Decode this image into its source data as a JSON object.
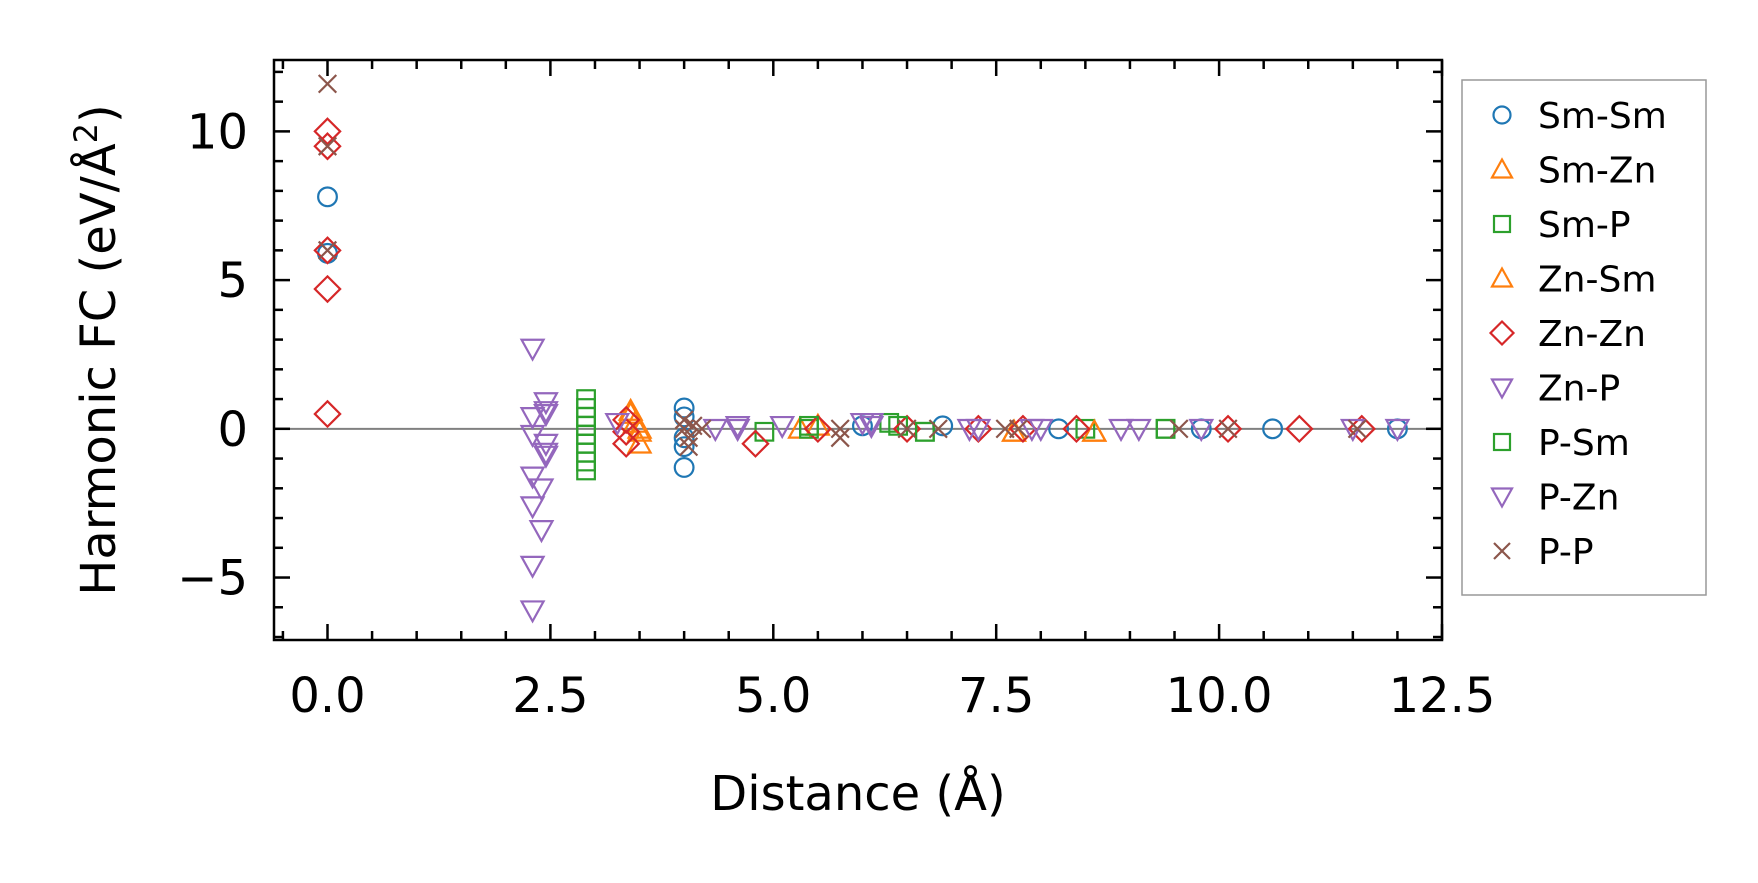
{
  "chart_data": {
    "type": "scatter",
    "title": "",
    "xlabel": "Distance (Å)",
    "ylabel": "Harmonic FC (eV/Å²)",
    "xlim": [
      -0.6,
      12.5
    ],
    "ylim": [
      -7.1,
      12.4
    ],
    "xticks": [
      0.0,
      2.5,
      5.0,
      7.5,
      10.0,
      12.5
    ],
    "xtick_labels": [
      "0.0",
      "2.5",
      "5.0",
      "7.5",
      "10.0",
      "12.5"
    ],
    "yticks": [
      -5,
      0,
      5,
      10
    ],
    "ytick_labels": [
      "−5",
      "0",
      "5",
      "10"
    ],
    "zero_line": 0,
    "grid": false,
    "legend_position": "outside-right",
    "series": [
      {
        "name": "Sm-Sm",
        "marker": "circle",
        "color": "#1f77b4",
        "points": [
          [
            0,
            7.8
          ],
          [
            0,
            5.9
          ],
          [
            4.0,
            0.7
          ],
          [
            4.0,
            0.4
          ],
          [
            4.0,
            -0.3
          ],
          [
            4.0,
            -0.6
          ],
          [
            4.0,
            -1.3
          ],
          [
            6.0,
            0.1
          ],
          [
            6.9,
            0.1
          ],
          [
            8.2,
            0.0
          ],
          [
            9.8,
            0.0
          ],
          [
            10.6,
            0.0
          ],
          [
            12.0,
            0.0
          ]
        ]
      },
      {
        "name": "Sm-Zn",
        "marker": "triangle-up",
        "color": "#ff7f0e",
        "points": [
          [
            3.4,
            0.6
          ],
          [
            3.45,
            0.2
          ],
          [
            3.5,
            -0.1
          ],
          [
            3.5,
            -0.5
          ],
          [
            5.3,
            0.0
          ],
          [
            7.7,
            -0.1
          ],
          [
            8.6,
            -0.1
          ]
        ]
      },
      {
        "name": "Sm-P",
        "marker": "square",
        "color": "#2ca02c",
        "points": [
          [
            2.9,
            1.0
          ],
          [
            2.9,
            0.7
          ],
          [
            2.9,
            0.4
          ],
          [
            2.9,
            0.1
          ],
          [
            2.9,
            -0.2
          ],
          [
            2.9,
            -0.5
          ],
          [
            2.9,
            -0.8
          ],
          [
            2.9,
            -1.1
          ],
          [
            2.9,
            -1.4
          ],
          [
            4.9,
            -0.1
          ],
          [
            5.4,
            0.0
          ],
          [
            6.3,
            0.2
          ],
          [
            6.7,
            -0.1
          ],
          [
            8.5,
            0.0
          ],
          [
            9.4,
            0.0
          ]
        ]
      },
      {
        "name": "Zn-Sm",
        "marker": "triangle-up",
        "color": "#ff7f0e",
        "points": [
          [
            3.4,
            0.5
          ],
          [
            3.5,
            0.0
          ],
          [
            5.5,
            0.1
          ],
          [
            7.7,
            -0.1
          ],
          [
            8.6,
            -0.1
          ]
        ]
      },
      {
        "name": "Zn-Zn",
        "marker": "diamond",
        "color": "#d62728",
        "points": [
          [
            0,
            10.0
          ],
          [
            0,
            9.5
          ],
          [
            0,
            6.0
          ],
          [
            0,
            4.7
          ],
          [
            0,
            0.5
          ],
          [
            3.35,
            0.3
          ],
          [
            3.35,
            -0.1
          ],
          [
            3.35,
            -0.5
          ],
          [
            4.8,
            -0.5
          ],
          [
            5.5,
            0.0
          ],
          [
            6.5,
            0.0
          ],
          [
            7.3,
            0.0
          ],
          [
            7.8,
            0.0
          ],
          [
            8.4,
            0.0
          ],
          [
            10.1,
            0.0
          ],
          [
            10.9,
            0.0
          ],
          [
            11.6,
            0.0
          ]
        ]
      },
      {
        "name": "Zn-P",
        "marker": "triangle-down",
        "color": "#9467bd",
        "points": [
          [
            2.3,
            2.7
          ],
          [
            2.3,
            0.4
          ],
          [
            2.3,
            -0.2
          ],
          [
            2.3,
            -1.6
          ],
          [
            2.3,
            -2.6
          ],
          [
            2.3,
            -4.6
          ],
          [
            2.3,
            -6.1
          ],
          [
            2.4,
            -2.0
          ],
          [
            2.4,
            -3.4
          ],
          [
            2.45,
            0.9
          ],
          [
            2.45,
            0.5
          ],
          [
            2.45,
            -0.5
          ],
          [
            2.45,
            -0.8
          ],
          [
            3.25,
            0.2
          ],
          [
            4.35,
            0.0
          ],
          [
            4.6,
            0.1
          ],
          [
            5.1,
            0.1
          ],
          [
            6.0,
            0.2
          ],
          [
            6.1,
            0.1
          ],
          [
            7.3,
            0.0
          ],
          [
            8.0,
            0.0
          ],
          [
            8.9,
            0.0
          ],
          [
            9.8,
            0.0
          ],
          [
            11.5,
            0.0
          ],
          [
            12.0,
            0.0
          ]
        ]
      },
      {
        "name": "P-Sm",
        "marker": "square",
        "color": "#2ca02c",
        "points": [
          [
            5.4,
            0.1
          ],
          [
            6.4,
            0.1
          ],
          [
            6.7,
            -0.1
          ],
          [
            9.4,
            0.0
          ]
        ]
      },
      {
        "name": "P-Zn",
        "marker": "triangle-down",
        "color": "#9467bd",
        "points": [
          [
            2.45,
            0.6
          ],
          [
            2.45,
            -0.9
          ],
          [
            4.6,
            0.0
          ],
          [
            6.1,
            0.2
          ],
          [
            7.2,
            0.0
          ],
          [
            7.9,
            0.0
          ],
          [
            9.1,
            0.0
          ]
        ]
      },
      {
        "name": "P-P",
        "marker": "x",
        "color": "#8c564b",
        "points": [
          [
            0,
            11.6
          ],
          [
            0,
            9.5
          ],
          [
            0,
            6.0
          ],
          [
            4.0,
            0.3
          ],
          [
            4.0,
            0.0
          ],
          [
            4.05,
            -0.3
          ],
          [
            4.05,
            -0.6
          ],
          [
            4.1,
            0.1
          ],
          [
            4.2,
            0.0
          ],
          [
            5.75,
            0.0
          ],
          [
            5.75,
            -0.3
          ],
          [
            6.5,
            0.0
          ],
          [
            6.85,
            0.0
          ],
          [
            7.6,
            0.0
          ],
          [
            7.75,
            0.0
          ],
          [
            9.55,
            0.0
          ],
          [
            10.1,
            0.0
          ],
          [
            11.55,
            0.0
          ]
        ]
      }
    ]
  }
}
